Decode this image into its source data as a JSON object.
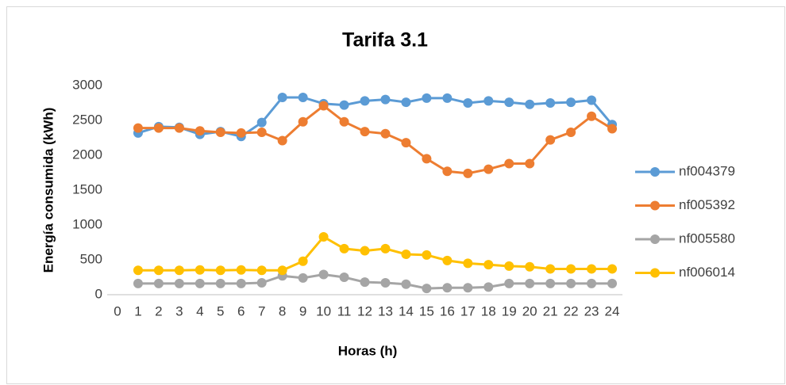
{
  "chart_data": {
    "type": "line",
    "title": "Tarifa 3.1",
    "xlabel": "Horas (h)",
    "ylabel": "Energía consumida (kWh)",
    "categories": [
      0,
      1,
      2,
      3,
      4,
      5,
      6,
      7,
      8,
      9,
      10,
      11,
      12,
      13,
      14,
      15,
      16,
      17,
      18,
      19,
      20,
      21,
      22,
      23,
      24
    ],
    "series": [
      {
        "name": "nf004379",
        "color": "#5b9bd5",
        "values": [
          null,
          2320,
          2410,
          2400,
          2300,
          2340,
          2270,
          2470,
          2830,
          2830,
          2740,
          2720,
          2780,
          2800,
          2760,
          2820,
          2820,
          2750,
          2780,
          2760,
          2730,
          2750,
          2760,
          2790,
          2440
        ]
      },
      {
        "name": "nf005392",
        "color": "#ed7d31",
        "values": [
          null,
          2390,
          2390,
          2390,
          2350,
          2330,
          2320,
          2330,
          2210,
          2480,
          2710,
          2480,
          2340,
          2310,
          2180,
          1950,
          1770,
          1740,
          1800,
          1880,
          1880,
          2220,
          2330,
          2560,
          2380
        ]
      },
      {
        "name": "nf005580",
        "color": "#a5a5a5",
        "values": [
          null,
          160,
          160,
          160,
          160,
          160,
          160,
          170,
          270,
          240,
          290,
          250,
          180,
          170,
          150,
          90,
          100,
          100,
          110,
          160,
          160,
          160,
          160,
          160,
          160
        ]
      },
      {
        "name": "nf006014",
        "color": "#ffc000",
        "values": [
          null,
          350,
          350,
          350,
          355,
          350,
          355,
          350,
          350,
          480,
          830,
          660,
          630,
          660,
          580,
          570,
          490,
          450,
          430,
          410,
          400,
          370,
          370,
          370,
          370
        ]
      }
    ],
    "ylim": [
      0,
      3000
    ],
    "yticks": [
      0,
      500,
      1000,
      1500,
      2000,
      2500,
      3000
    ],
    "grid": false,
    "legend": "right"
  }
}
